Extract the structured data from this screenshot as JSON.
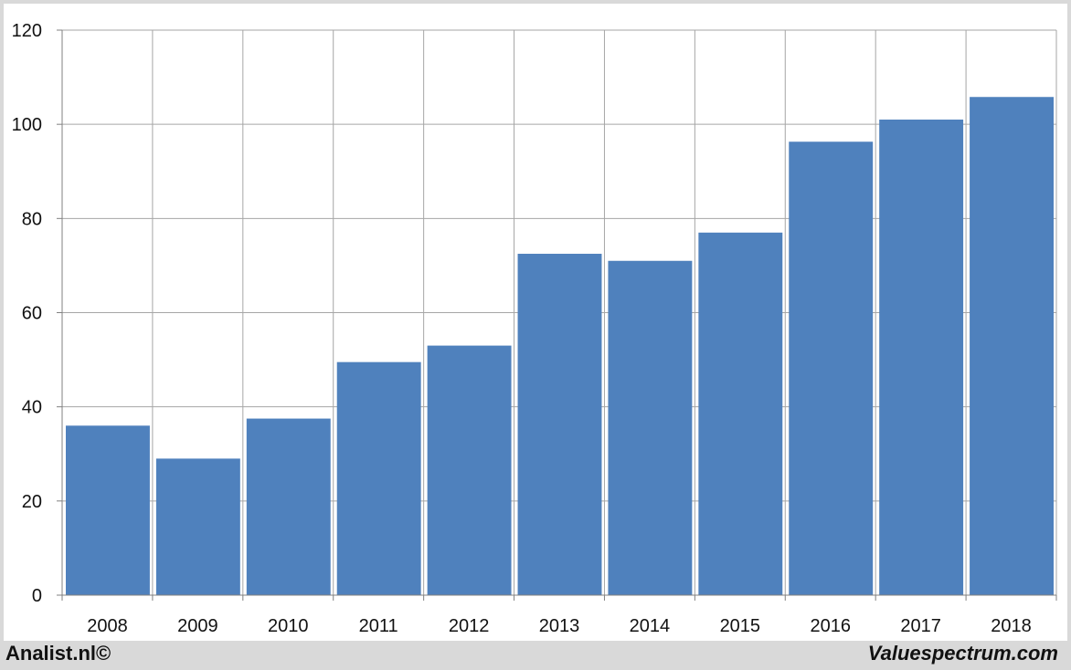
{
  "chart_data": {
    "type": "bar",
    "categories": [
      "2008",
      "2009",
      "2010",
      "2011",
      "2012",
      "2013",
      "2014",
      "2015",
      "2016",
      "2017",
      "2018"
    ],
    "values": [
      36,
      29,
      37.5,
      49.5,
      53,
      72.5,
      71,
      77,
      96.3,
      101,
      105.8
    ],
    "ylim": [
      0,
      120
    ],
    "yticks": [
      0,
      20,
      40,
      60,
      80,
      100,
      120
    ],
    "grid": true,
    "bar_color": "#4f81bd",
    "title": "",
    "xlabel": "",
    "ylabel": ""
  },
  "footer": {
    "left": "Analist.nl©",
    "right": "Valuespectrum.com"
  },
  "colors": {
    "plot_background": "#ffffff",
    "frame_background": "#d9d9d9",
    "grid": "#a6a6a6"
  }
}
